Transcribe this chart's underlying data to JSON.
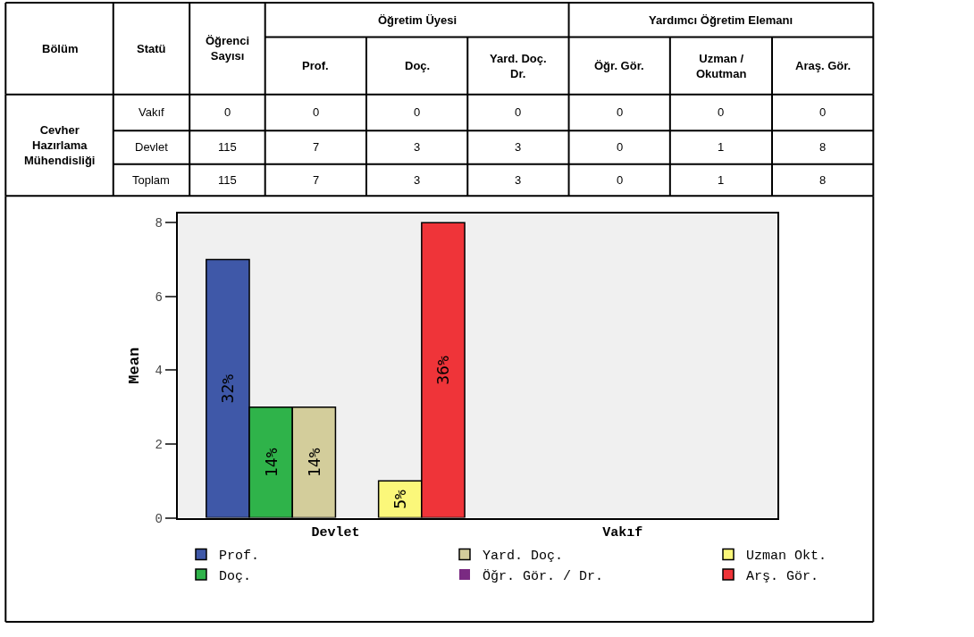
{
  "chart_data": [
    {
      "type": "other",
      "categories": [
        "Bölüm",
        "Statü",
        "Öğrenci Sayısı",
        "Prof.",
        "Doç.",
        "Yard. Doç. Dr.",
        "Öğr. Gör.",
        "Uzman / Okutman",
        "Araş. Gör."
      ],
      "annotations": [
        "Öğretim Üyesi",
        "Yardımcı Öğretim Elemanı",
        "Cevher Hazırlama Mühendisliği"
      ],
      "y_categories": [
        "Vakıf",
        "Devlet",
        "Toplam"
      ],
      "cell_labels": [
        [
          "0",
          "0",
          "0",
          "0",
          "0",
          "0",
          "0"
        ],
        [
          "115",
          "7",
          "3",
          "3",
          "0",
          "1",
          "8"
        ],
        [
          "115",
          "7",
          "3",
          "3",
          "0",
          "1",
          "8"
        ]
      ]
    },
    {
      "type": "bar",
      "categories": [
        "Devlet",
        "Vakıf"
      ],
      "ylabel": "Mean",
      "annotations": [
        "32%",
        "14%",
        "14%",
        "5%",
        "36%"
      ],
      "ylim": [
        0,
        8.25
      ],
      "yticks": [
        0,
        2,
        4,
        6,
        8
      ],
      "legend": "bottom",
      "series": [
        {
          "name": "Prof.",
          "color": "#3f58a8",
          "values": [
            7,
            0
          ]
        },
        {
          "name": "Doç.",
          "color": "#2fb34a",
          "values": [
            3,
            0
          ]
        },
        {
          "name": "Yard. Doç.",
          "color": "#d3cd9b",
          "values": [
            3,
            0
          ]
        },
        {
          "name": "Öğr. Gör. / Dr.",
          "color": "#7a2a82",
          "values": [
            0,
            0
          ]
        },
        {
          "name": "Uzman Okt.",
          "color": "#fbf77a",
          "values": [
            1,
            0
          ]
        },
        {
          "name": "Arş. Gör.",
          "color": "#ef3439",
          "values": [
            8,
            0
          ]
        }
      ]
    }
  ]
}
